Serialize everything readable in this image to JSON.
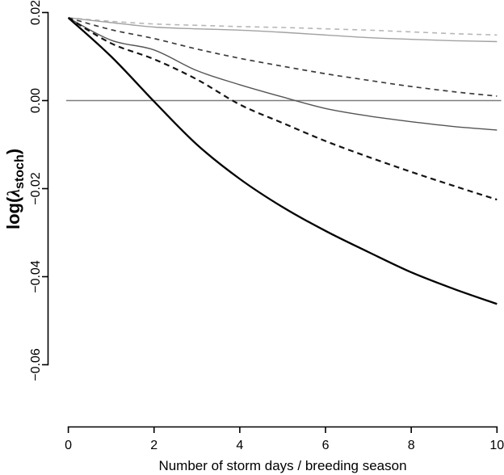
{
  "figure": {
    "background": "#ffffff",
    "text_color": "#000000"
  },
  "chart_data": {
    "type": "line",
    "title": "",
    "xlabel": "Number of storm days / breeding season",
    "ylabel": "log(λ_stoch)",
    "ylabel_parts": {
      "open": "log(",
      "lambda": "λ",
      "sub": "stoch",
      "close": ")"
    },
    "xlim": [
      0,
      10
    ],
    "ylim": [
      -0.06,
      0.02
    ],
    "grid": false,
    "legend": "none",
    "xticks": {
      "values": [
        0,
        2,
        4,
        6,
        8,
        10
      ],
      "labels": [
        "0",
        "2",
        "4",
        "6",
        "8",
        "10"
      ]
    },
    "yticks": {
      "values": [
        0.02,
        0.0,
        -0.02,
        -0.04,
        -0.06
      ],
      "labels": [
        "0.02",
        "0.00",
        "−0.02",
        "−0.04",
        "−0.06"
      ]
    },
    "reference_line": {
      "y": 0.0,
      "color": "#7d7d7d",
      "width": 1.6
    },
    "x": [
      0,
      1,
      2,
      3,
      4,
      5,
      6,
      7,
      8,
      9,
      10
    ],
    "series": [
      {
        "name": "light-gray-dashed",
        "style": "dashed",
        "color": "#b7b7b7",
        "width": 1.6,
        "dash": "6 5",
        "values": [
          0.0188,
          0.018,
          0.0174,
          0.0171,
          0.0168,
          0.0166,
          0.0163,
          0.016,
          0.0156,
          0.0152,
          0.0149
        ]
      },
      {
        "name": "light-gray-solid",
        "style": "solid",
        "color": "#a2a2a2",
        "width": 1.4,
        "dash": "",
        "values": [
          0.0188,
          0.0177,
          0.0167,
          0.0163,
          0.016,
          0.0155,
          0.0149,
          0.0143,
          0.0139,
          0.0136,
          0.0134
        ]
      },
      {
        "name": "dark-gray-dashed",
        "style": "dashed",
        "color": "#3c3c3c",
        "width": 1.7,
        "dash": "6 5",
        "values": [
          0.0188,
          0.0161,
          0.0141,
          0.0117,
          0.0096,
          0.0078,
          0.0061,
          0.0046,
          0.0032,
          0.002,
          0.001
        ]
      },
      {
        "name": "medium-gray-solid",
        "style": "solid",
        "color": "#555555",
        "width": 1.4,
        "dash": "",
        "values": [
          0.0188,
          0.0137,
          0.0115,
          0.0068,
          0.0036,
          0.0008,
          -0.0018,
          -0.0035,
          -0.0048,
          -0.0059,
          -0.0067
        ]
      },
      {
        "name": "black-dashed",
        "style": "dashed",
        "color": "#141414",
        "width": 2.2,
        "dash": "7 5",
        "values": [
          0.0188,
          0.013,
          0.0094,
          0.0048,
          -0.0009,
          -0.0051,
          -0.0092,
          -0.0128,
          -0.0162,
          -0.0194,
          -0.0225
        ]
      },
      {
        "name": "black-solid",
        "style": "solid",
        "color": "#000000",
        "width": 2.3,
        "dash": "",
        "values": [
          0.0188,
          0.01,
          -0.0002,
          -0.01,
          -0.0178,
          -0.0242,
          -0.0296,
          -0.0344,
          -0.039,
          -0.0428,
          -0.0462
        ]
      }
    ]
  }
}
